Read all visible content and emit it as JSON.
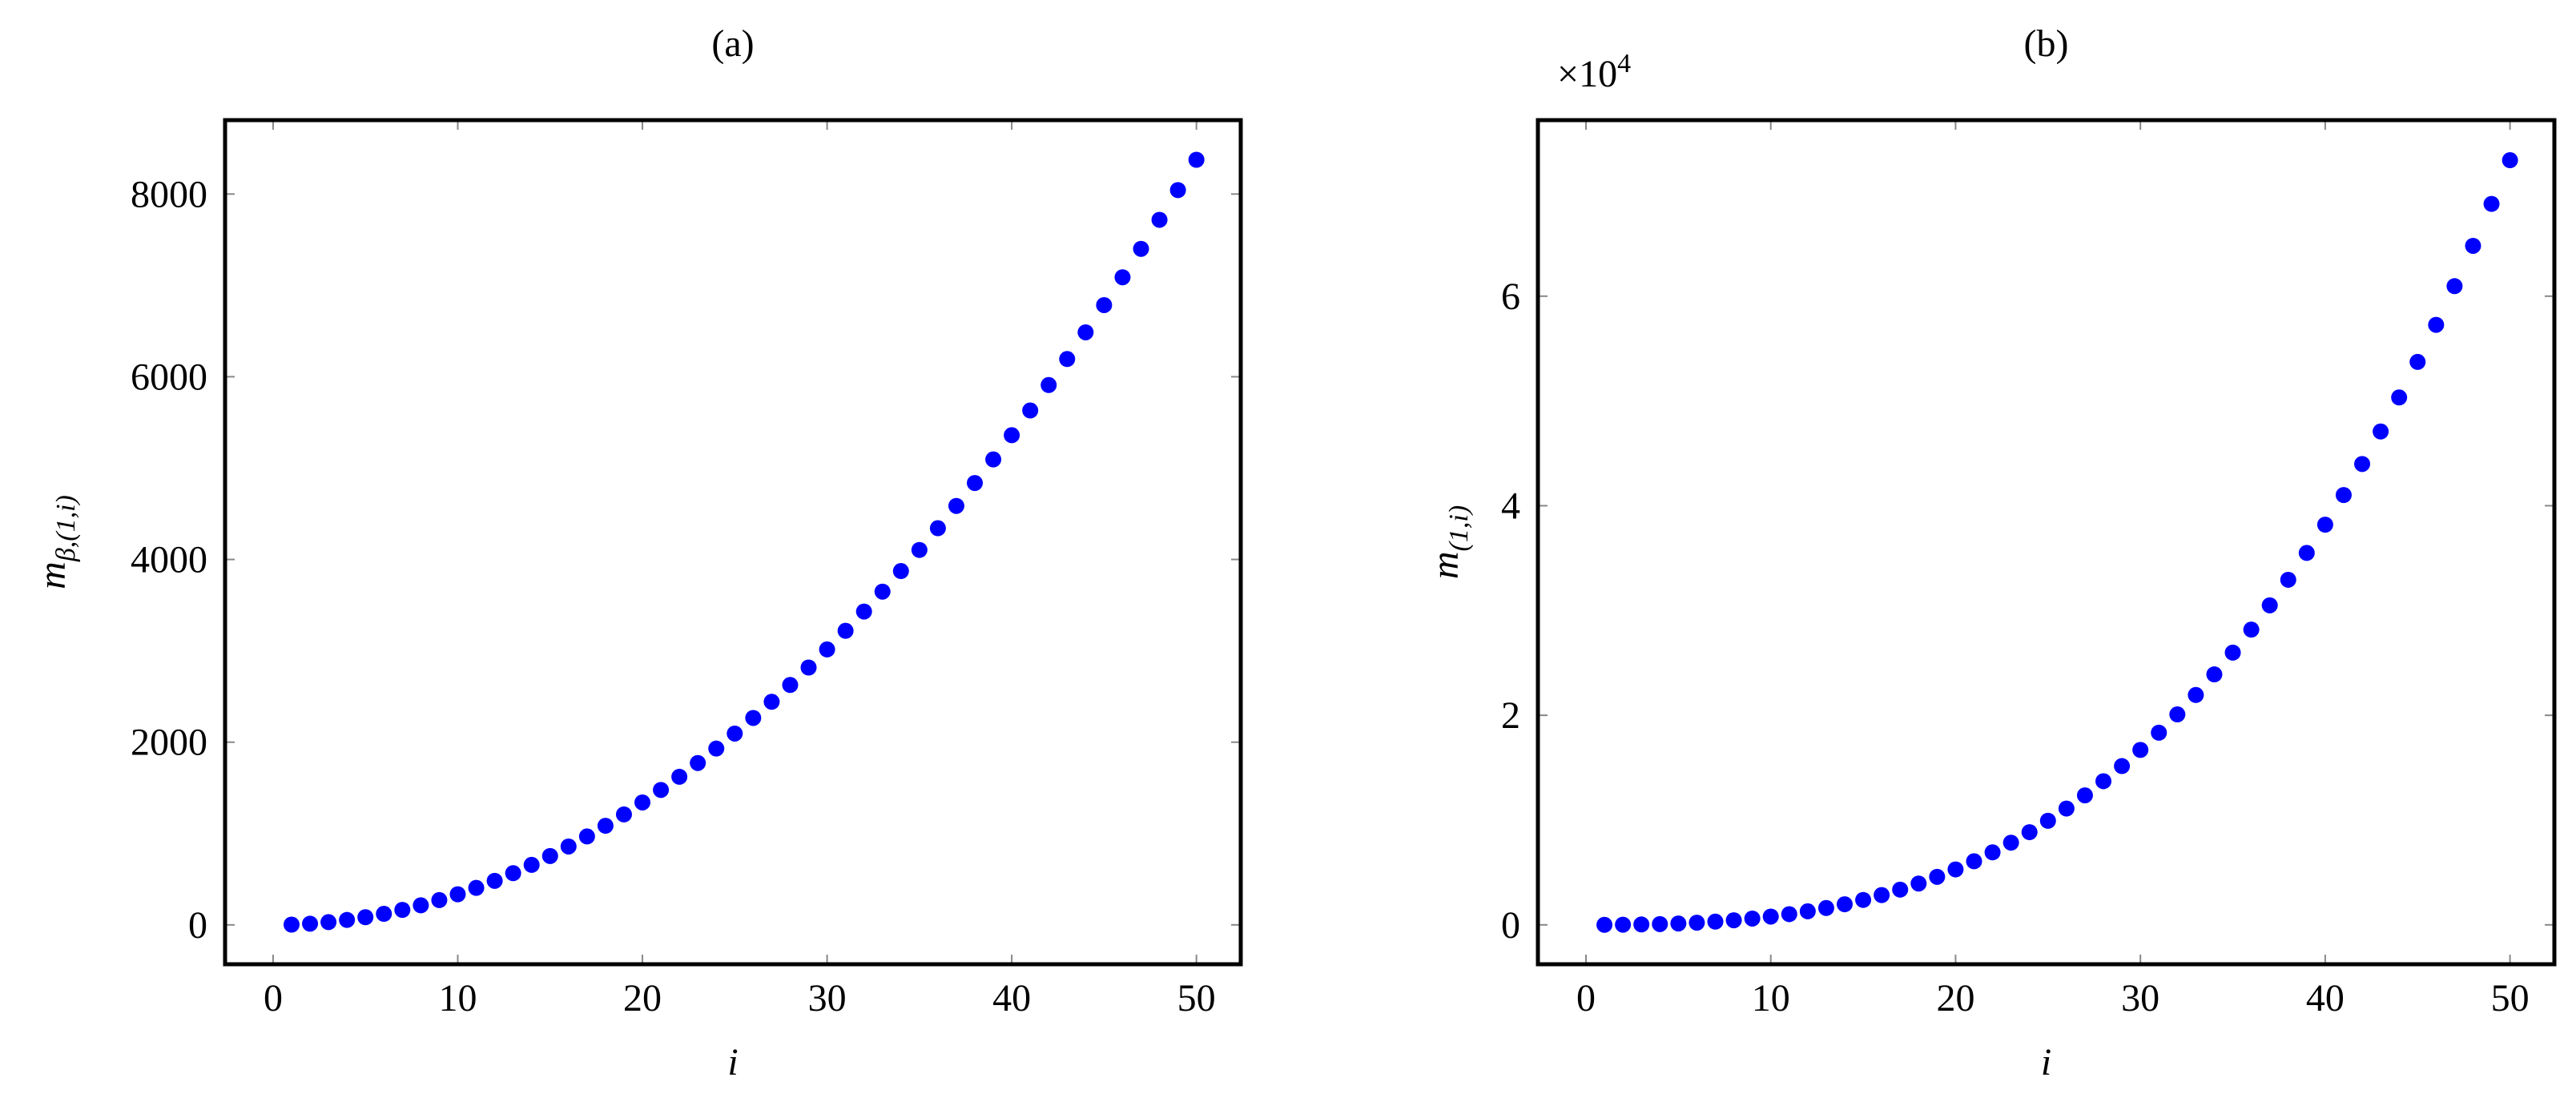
{
  "chart_data": [
    {
      "type": "scatter",
      "title": "(a)",
      "xlabel": "i",
      "ylabel": {
        "base": "m",
        "subscript": "β,(1,i)"
      },
      "color": "#0000ff",
      "x": [
        1,
        2,
        3,
        4,
        5,
        6,
        7,
        8,
        9,
        10,
        11,
        12,
        13,
        14,
        15,
        16,
        17,
        18,
        19,
        20,
        21,
        22,
        23,
        24,
        25,
        26,
        27,
        28,
        29,
        30,
        31,
        32,
        33,
        34,
        35,
        36,
        37,
        38,
        39,
        40,
        41,
        42,
        43,
        44,
        45,
        46,
        47,
        48,
        49,
        50
      ],
      "values": [
        3,
        13,
        30,
        54,
        84,
        121,
        164,
        214,
        271,
        335,
        405,
        482,
        566,
        657,
        754,
        858,
        968,
        1085,
        1209,
        1340,
        1477,
        1621,
        1772,
        1930,
        2094,
        2265,
        2442,
        2626,
        2817,
        3015,
        3219,
        3430,
        3648,
        3873,
        4104,
        4342,
        4586,
        4837,
        5095,
        5360,
        5631,
        5909,
        6194,
        6486,
        6784,
        7089,
        7400,
        7718,
        8043,
        8375
      ],
      "xlim": [
        -2.6,
        52.4
      ],
      "xticks": [
        0,
        10,
        20,
        30,
        40,
        50
      ],
      "ylim": [
        -431,
        8809
      ],
      "yticks": [
        0,
        2000,
        4000,
        6000,
        8000
      ]
    },
    {
      "type": "scatter",
      "title": "(b)",
      "xlabel": "i",
      "ylabel": {
        "base": "m",
        "subscript": "(1,i)"
      },
      "y_multiplier": {
        "base": "×10",
        "exponent": "4"
      },
      "color": "#0000ff",
      "x": [
        1,
        2,
        3,
        4,
        5,
        6,
        7,
        8,
        9,
        10,
        11,
        12,
        13,
        14,
        15,
        16,
        17,
        18,
        19,
        20,
        21,
        22,
        23,
        24,
        25,
        26,
        27,
        28,
        29,
        30,
        31,
        32,
        33,
        34,
        35,
        36,
        37,
        38,
        39,
        40,
        41,
        42,
        43,
        44,
        45,
        46,
        47,
        48,
        49,
        50
      ],
      "values": [
        3,
        15,
        38,
        75,
        131,
        208,
        309,
        438,
        598,
        791,
        1021,
        1292,
        1606,
        1967,
        2378,
        2842,
        3362,
        3942,
        4584,
        5292,
        6069,
        6918,
        7843,
        8846,
        9931,
        11101,
        12360,
        13709,
        15153,
        16695,
        18338,
        20085,
        21939,
        23904,
        25982,
        28178,
        30493,
        32932,
        35497,
        38192,
        41020,
        43984,
        47087,
        50332,
        53723,
        57263,
        60955,
        64802,
        68808,
        72975
      ],
      "xlim": [
        -2.6,
        52.4
      ],
      "xticks": [
        0,
        10,
        20,
        30,
        40,
        50
      ],
      "ylim": [
        -3760,
        76800
      ],
      "yticks": [
        {
          "value": 0,
          "label": "0"
        },
        {
          "value": 20000,
          "label": "2"
        },
        {
          "value": 40000,
          "label": "4"
        },
        {
          "value": 60000,
          "label": "6"
        }
      ]
    }
  ]
}
